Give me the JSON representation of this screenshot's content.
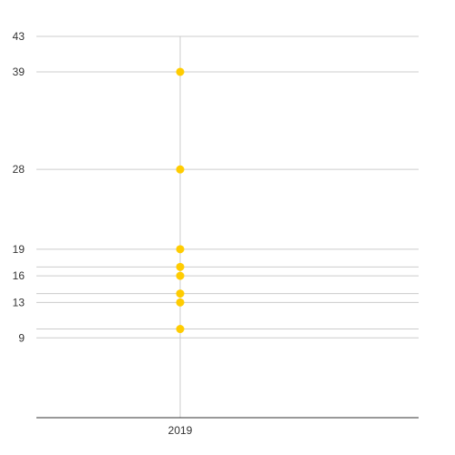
{
  "chart_data": {
    "type": "scatter",
    "title": "",
    "xlabel": "",
    "ylabel": "",
    "categories": [
      "2019"
    ],
    "series": [
      {
        "values": [
          39,
          28,
          19,
          17,
          16,
          14,
          13,
          10
        ]
      }
    ],
    "y_ticks": [
      9,
      13,
      16,
      19,
      28,
      39,
      43
    ],
    "extra_gridlines": [
      10,
      14,
      17
    ],
    "ylim": [
      0,
      43
    ],
    "grid": true,
    "legend": "none",
    "colors": {
      "points": "#ffcc00",
      "grid": "#cccccc",
      "baseline": "#333333",
      "text": "#333333"
    }
  }
}
